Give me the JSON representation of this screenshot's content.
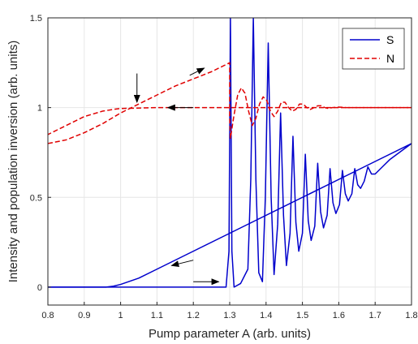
{
  "chart_data": {
    "type": "line",
    "title": "",
    "xlabel": "Pump parameter A (arb. units)",
    "ylabel": "Intensity and population inversion (arb. units)",
    "xlim": [
      0.8,
      1.8
    ],
    "ylim": [
      -0.1,
      1.5
    ],
    "x_ticks": [
      "0.8",
      "0.9",
      "1",
      "1.1",
      "1.2",
      "1.3",
      "1.4",
      "1.5",
      "1.6",
      "1.7",
      "1.8"
    ],
    "y_ticks": [
      "0",
      "0.5",
      "1",
      "1.5"
    ],
    "grid": true,
    "legend_position": "top-right",
    "series": [
      {
        "name": "S",
        "style": "solid",
        "color": "#0000cc",
        "segments": [
          {
            "note": "forward sweep (increasing A)",
            "points": [
              [
                0.8,
                0.0
              ],
              [
                0.9,
                0.0
              ],
              [
                1.0,
                0.0
              ],
              [
                1.1,
                0.0
              ],
              [
                1.2,
                0.0
              ],
              [
                1.29,
                0.0
              ],
              [
                1.298,
                0.2
              ],
              [
                1.302,
                1.5
              ],
              [
                1.306,
                0.2
              ],
              [
                1.312,
                0.0
              ],
              [
                1.33,
                0.02
              ],
              [
                1.35,
                0.1
              ],
              [
                1.358,
                0.6
              ],
              [
                1.365,
                1.5
              ],
              [
                1.372,
                0.6
              ],
              [
                1.38,
                0.08
              ],
              [
                1.39,
                0.03
              ],
              [
                1.398,
                0.5
              ],
              [
                1.406,
                1.36
              ],
              [
                1.414,
                0.5
              ],
              [
                1.422,
                0.07
              ],
              [
                1.432,
                0.35
              ],
              [
                1.44,
                0.97
              ],
              [
                1.448,
                0.4
              ],
              [
                1.456,
                0.12
              ],
              [
                1.466,
                0.3
              ],
              [
                1.474,
                0.84
              ],
              [
                1.482,
                0.36
              ],
              [
                1.49,
                0.2
              ],
              [
                1.5,
                0.3
              ],
              [
                1.508,
                0.74
              ],
              [
                1.516,
                0.37
              ],
              [
                1.524,
                0.26
              ],
              [
                1.534,
                0.34
              ],
              [
                1.542,
                0.69
              ],
              [
                1.55,
                0.42
              ],
              [
                1.558,
                0.33
              ],
              [
                1.568,
                0.4
              ],
              [
                1.576,
                0.66
              ],
              [
                1.584,
                0.47
              ],
              [
                1.592,
                0.41
              ],
              [
                1.602,
                0.46
              ],
              [
                1.61,
                0.65
              ],
              [
                1.618,
                0.52
              ],
              [
                1.626,
                0.48
              ],
              [
                1.636,
                0.52
              ],
              [
                1.644,
                0.66
              ],
              [
                1.652,
                0.57
              ],
              [
                1.66,
                0.55
              ],
              [
                1.67,
                0.59
              ],
              [
                1.68,
                0.67
              ],
              [
                1.69,
                0.63
              ],
              [
                1.7,
                0.63
              ],
              [
                1.72,
                0.67
              ],
              [
                1.74,
                0.71
              ],
              [
                1.76,
                0.74
              ],
              [
                1.78,
                0.77
              ],
              [
                1.8,
                0.8
              ]
            ]
          },
          {
            "note": "backward sweep (decreasing A)",
            "points": [
              [
                1.8,
                0.8
              ],
              [
                1.7,
                0.7
              ],
              [
                1.6,
                0.6
              ],
              [
                1.5,
                0.5
              ],
              [
                1.4,
                0.4
              ],
              [
                1.3,
                0.3
              ],
              [
                1.2,
                0.2
              ],
              [
                1.1,
                0.1
              ],
              [
                1.05,
                0.05
              ],
              [
                1.0,
                0.015
              ],
              [
                0.98,
                0.005
              ],
              [
                0.96,
                0.0
              ],
              [
                0.9,
                0.0
              ],
              [
                0.8,
                0.0
              ]
            ]
          }
        ]
      },
      {
        "name": "N",
        "style": "dashed",
        "color": "#e00000",
        "segments": [
          {
            "note": "forward sweep (increasing A)",
            "points": [
              [
                0.8,
                0.8
              ],
              [
                0.85,
                0.82
              ],
              [
                0.9,
                0.86
              ],
              [
                0.95,
                0.91
              ],
              [
                1.0,
                0.97
              ],
              [
                1.05,
                1.02
              ],
              [
                1.1,
                1.07
              ],
              [
                1.15,
                1.12
              ],
              [
                1.2,
                1.16
              ],
              [
                1.25,
                1.2
              ],
              [
                1.3,
                1.25
              ],
              [
                1.3,
                0.95
              ],
              [
                1.302,
                0.83
              ],
              [
                1.312,
                0.96
              ],
              [
                1.322,
                1.07
              ],
              [
                1.332,
                1.11
              ],
              [
                1.342,
                1.08
              ],
              [
                1.352,
                0.98
              ],
              [
                1.362,
                0.9
              ],
              [
                1.372,
                0.94
              ],
              [
                1.382,
                1.02
              ],
              [
                1.392,
                1.06
              ],
              [
                1.402,
                1.04
              ],
              [
                1.412,
                0.98
              ],
              [
                1.422,
                0.95
              ],
              [
                1.432,
                0.98
              ],
              [
                1.442,
                1.03
              ],
              [
                1.452,
                1.03
              ],
              [
                1.462,
                1.0
              ],
              [
                1.472,
                0.98
              ],
              [
                1.482,
                0.99
              ],
              [
                1.492,
                1.02
              ],
              [
                1.502,
                1.02
              ],
              [
                1.512,
                1.0
              ],
              [
                1.522,
                0.99
              ],
              [
                1.532,
                1.0
              ],
              [
                1.542,
                1.01
              ],
              [
                1.552,
                1.01
              ],
              [
                1.562,
                1.0
              ],
              [
                1.572,
                0.995
              ],
              [
                1.582,
                1.0
              ],
              [
                1.6,
                1.003
              ],
              [
                1.62,
                1.0
              ],
              [
                1.7,
                1.0
              ],
              [
                1.8,
                1.0
              ]
            ]
          },
          {
            "note": "backward sweep (decreasing A)",
            "points": [
              [
                1.8,
                1.0
              ],
              [
                1.5,
                1.0
              ],
              [
                1.3,
                1.0
              ],
              [
                1.1,
                1.0
              ],
              [
                1.0,
                0.995
              ],
              [
                0.98,
                0.99
              ],
              [
                0.95,
                0.98
              ],
              [
                0.9,
                0.95
              ],
              [
                0.85,
                0.9
              ],
              [
                0.8,
                0.85
              ]
            ]
          }
        ]
      }
    ],
    "arrows": [
      {
        "from": [
          1.045,
          1.19
        ],
        "to": [
          1.045,
          1.03
        ],
        "color": "#000000"
      },
      {
        "from": [
          1.19,
          1.18
        ],
        "to": [
          1.23,
          1.22
        ],
        "color": "#000000"
      },
      {
        "from": [
          1.2,
          1.0
        ],
        "to": [
          1.13,
          1.0
        ],
        "color": "#000000"
      },
      {
        "from": [
          1.2,
          0.15
        ],
        "to": [
          1.14,
          0.12
        ],
        "color": "#000000"
      },
      {
        "from": [
          1.2,
          0.03
        ],
        "to": [
          1.27,
          0.03
        ],
        "color": "#000000"
      }
    ]
  }
}
